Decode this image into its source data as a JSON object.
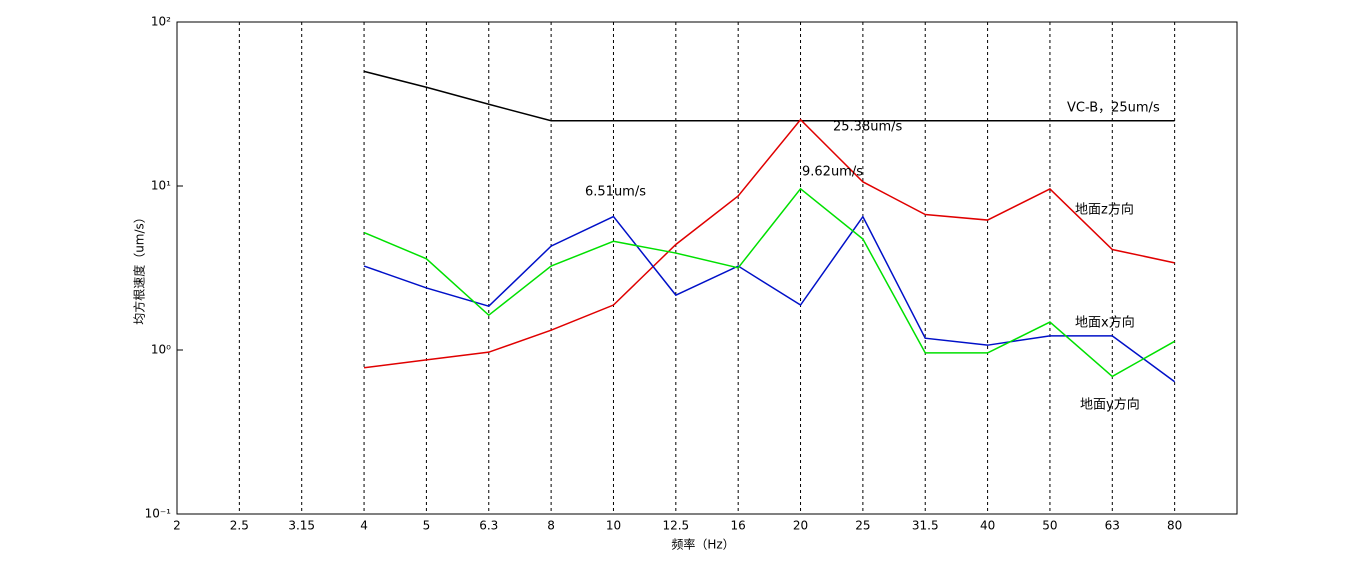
{
  "chart_data": {
    "type": "line",
    "xlabel": "频率（Hz）",
    "ylabel": "均方根速度（um/s）",
    "categories": [
      "2",
      "2.5",
      "3.15",
      "4",
      "5",
      "6.3",
      "8",
      "10",
      "12.5",
      "16",
      "20",
      "25",
      "31.5",
      "40",
      "50",
      "63",
      "80"
    ],
    "log_y": true,
    "grid": true,
    "ylim": [
      0.1,
      100
    ],
    "yticks": [
      {
        "value": 0.1,
        "label": "10⁻¹"
      },
      {
        "value": 1,
        "label": "10⁰"
      },
      {
        "value": 10,
        "label": "10¹"
      },
      {
        "value": 100,
        "label": "10²"
      }
    ],
    "series": [
      {
        "name": "VC-B，25um/s",
        "color": "#000000",
        "values": [
          null,
          null,
          null,
          50,
          40,
          31.5,
          25,
          25,
          25,
          25,
          25,
          25,
          25,
          25,
          25,
          25,
          25
        ]
      },
      {
        "name": "地面z方向",
        "color": "#e00000",
        "values": [
          null,
          null,
          null,
          0.78,
          0.87,
          0.97,
          1.32,
          1.88,
          4.4,
          8.7,
          25.38,
          10.6,
          6.7,
          6.2,
          9.6,
          4.1,
          3.4
        ]
      },
      {
        "name": "地面x方向",
        "color": "#0010c8",
        "values": [
          null,
          null,
          null,
          3.25,
          2.39,
          1.85,
          4.3,
          6.51,
          2.16,
          3.25,
          1.88,
          6.5,
          1.18,
          1.07,
          1.22,
          1.22,
          0.64
        ]
      },
      {
        "name": "地面y方向",
        "color": "#00e000",
        "values": [
          null,
          null,
          null,
          5.2,
          3.6,
          1.63,
          3.25,
          4.6,
          3.9,
          3.17,
          9.62,
          4.75,
          0.96,
          0.96,
          1.48,
          0.69,
          1.13
        ]
      }
    ],
    "annotations": [
      "6.51um/s",
      "9.62um/s",
      "25.38um/s"
    ]
  }
}
